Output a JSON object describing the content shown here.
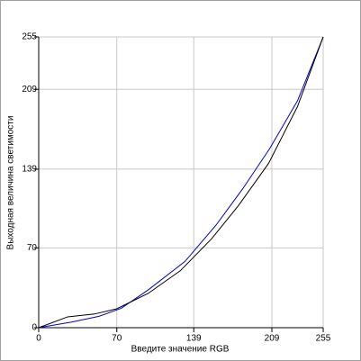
{
  "chart_data": {
    "type": "line",
    "x_label": "Введите значение RGB",
    "y_label": "Выходная величина светимости",
    "xlim": [
      0,
      255
    ],
    "ylim": [
      0,
      255
    ],
    "xticks": [
      0,
      70,
      139,
      209,
      255
    ],
    "yticks": [
      0,
      70,
      139,
      209,
      255
    ],
    "grid": true,
    "series": [
      {
        "color": "#0000cc",
        "x": [
          0,
          30,
          54,
          74,
          98,
          131,
          159,
          183,
          207,
          232,
          255
        ],
        "values": [
          0,
          5,
          10,
          17,
          33,
          58,
          90,
          122,
          157,
          199,
          255
        ]
      },
      {
        "color": "#000000",
        "x": [
          0,
          26,
          50,
          70,
          98,
          127,
          155,
          179,
          206,
          232,
          255
        ],
        "values": [
          0,
          9.5,
          12,
          16.6,
          30,
          50,
          78,
          107,
          144,
          194,
          255
        ]
      }
    ]
  }
}
